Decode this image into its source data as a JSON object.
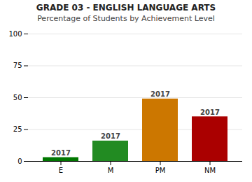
{
  "chart_data": {
    "type": "bar",
    "title": "GRADE 03 - ENGLISH LANGUAGE ARTS",
    "subtitle": "Percentage of Students by Achievement Level",
    "categories": [
      "E",
      "M",
      "PM",
      "NM"
    ],
    "values": [
      3,
      16,
      49,
      35
    ],
    "colors": [
      "#007700",
      "#228B22",
      "#CC7700",
      "#AA0000"
    ],
    "annotations": [
      "2017",
      "2017",
      "2017",
      "2017"
    ],
    "ylim": [
      0,
      100
    ],
    "yticks": [
      0,
      25,
      50,
      75,
      100
    ],
    "grid": true
  }
}
